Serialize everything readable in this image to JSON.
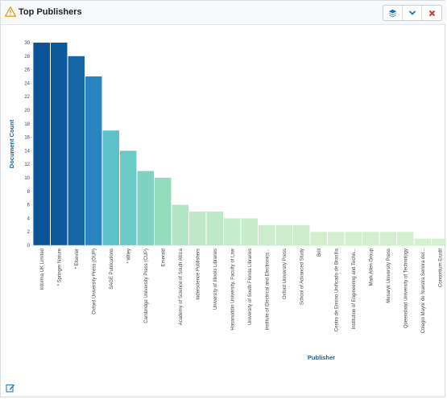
{
  "panel": {
    "title": "Top Publishers",
    "icons": {
      "warning": "warning-icon",
      "layers": "layers-icon",
      "collapse": "chevron-down-icon",
      "close": "close-icon",
      "edit": "edit-icon"
    },
    "colors": {
      "layers_icon": "#1a73b9",
      "close_icon": "#d9342b",
      "warning_icon": "#e2a01c"
    }
  },
  "chart_data": {
    "type": "bar",
    "xlabel": "Publisher",
    "ylabel": "Document Count",
    "ylim": [
      0,
      30
    ],
    "yticks": [
      0,
      2,
      4,
      6,
      8,
      10,
      12,
      14,
      16,
      18,
      20,
      22,
      24,
      26,
      28,
      30
    ],
    "grid": false,
    "categories": [
      "Informa UK Limited",
      "* Springer Nature",
      "* Elsevier",
      "Oxford University Press (OUP)",
      "SAGE Publications",
      "* Wiley",
      "Cambridge University Press (CUP)",
      "Emerald",
      "Academy of Science of South Africa",
      "Inderscience Publishers",
      "University of Illinois Libraries",
      "Hasanuddin University, Faculty of Law",
      "University of South Florida Libraries",
      "Institute of Electrical and Electronics...",
      "Oxford University Press",
      "School of Advanced Study",
      "Brill",
      "Centro de Ensino Unificado de Brasília",
      "Institution of Engineering and Techn...",
      "Mark Allen Group",
      "Mesaryk University Press",
      "Queensland University of Technology",
      "Colegio Mayor de Nuestra Senora del...",
      "Consortium Erudit"
    ],
    "values": [
      30,
      30,
      28,
      25,
      17,
      14,
      11,
      10,
      6,
      5,
      5,
      4,
      4,
      3,
      3,
      3,
      2,
      2,
      2,
      2,
      2,
      2,
      1,
      1
    ],
    "colors": [
      "#0b5394",
      "#0d5a9a",
      "#1466a7",
      "#2a85bf",
      "#5ec0c9",
      "#6ccbc6",
      "#80d3c1",
      "#93dbbd",
      "#b3e6c4",
      "#bfe9c6",
      "#bfe9c6",
      "#c6ecc8",
      "#c6ecc8",
      "#cdeecb",
      "#cdeecb",
      "#cdeecb",
      "#d2f0cd",
      "#d2f0cd",
      "#d2f0cd",
      "#d2f0cd",
      "#d2f0cd",
      "#d2f0cd",
      "#d6f1cf",
      "#d6f1cf"
    ]
  }
}
